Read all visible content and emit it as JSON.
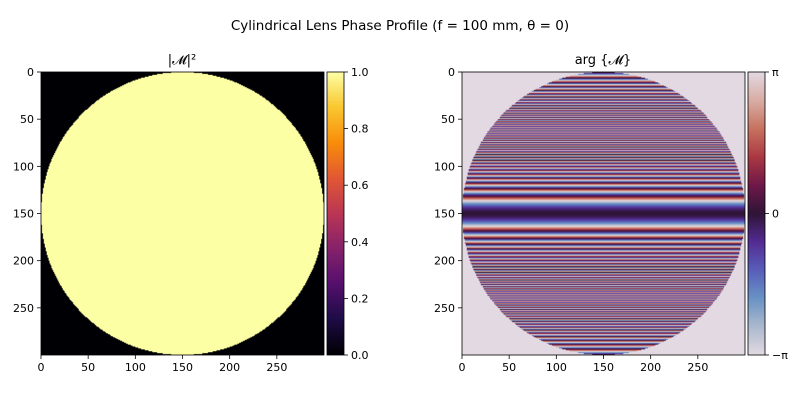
{
  "chart_data": {
    "title": "Cylindrical Lens Phase Profile (f = 100 mm, θ = 0)",
    "panels": [
      {
        "type": "heatmap",
        "title": "|𝓜|²",
        "image_size": [
          300,
          300
        ],
        "x_ticks": [
          "0",
          "50",
          "100",
          "150",
          "200",
          "250"
        ],
        "y_ticks": [
          "0",
          "50",
          "100",
          "150",
          "200",
          "250"
        ],
        "aperture": {
          "shape": "circle",
          "center": [
            150,
            150
          ],
          "radius": 150
        },
        "values": {
          "inside": 1.0,
          "outside": 0.0
        },
        "colormap": "inferno",
        "colorbar": {
          "ticks": [
            "0.0",
            "0.2",
            "0.4",
            "0.6",
            "0.8",
            "1.0"
          ],
          "range": [
            0,
            1
          ]
        },
        "colors": {
          "inside": "#fcffa4",
          "outside": "#000004"
        }
      },
      {
        "type": "heatmap",
        "title": "arg {𝓜}",
        "image_size": [
          300,
          300
        ],
        "x_ticks": [
          "0",
          "50",
          "100",
          "150",
          "200",
          "250"
        ],
        "y_ticks": [
          "0",
          "50",
          "100",
          "150",
          "200",
          "250"
        ],
        "aperture": {
          "shape": "circle",
          "center": [
            150,
            150
          ],
          "radius": 150
        },
        "phase": {
          "form": "quadratic_in_y",
          "center_row": 150,
          "wrap": [
            -3.14159,
            3.14159
          ],
          "coefficient": -0.0177
        },
        "colormap": "twilight",
        "colorbar": {
          "ticks": [
            "−π",
            "0",
            "π"
          ],
          "range": [
            -3.14159,
            3.14159
          ]
        },
        "colors": {
          "outside": "#e2d9e2"
        }
      }
    ]
  }
}
